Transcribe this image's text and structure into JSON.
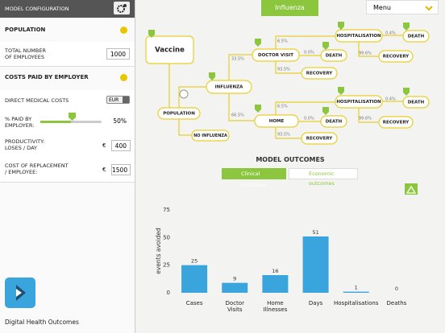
{
  "sidebar": {
    "title": "MODEL CONFIGURATION",
    "population": {
      "heading": "POPULATION",
      "employees_label": "TOTAL NUMBER OF EMPLOYEES",
      "employees": "1000"
    },
    "costs": {
      "heading": "COSTS PAID BY EMPLOYER",
      "direct_label": "DIRECT MEDICAL COSTS",
      "currency": "EUR",
      "paid_label": "% PAID BY EMPLOYER:",
      "paid": "50%",
      "productivity_label": "PRODUCTIVITY: LOSES / DAY",
      "productivity_currency": "€",
      "productivity": "400",
      "replacement_label": "COST OF REPLACEMENT / EMPLOYEE:",
      "replacement_currency": "€",
      "replacement": "1500"
    },
    "brand": "Digital Health Outcomes"
  },
  "top": {
    "tab": "Influenza",
    "menu": "Menu"
  },
  "diagram": {
    "nodes": [
      "Vaccine",
      "POPULATION",
      "INFLUENZA",
      "DOCTOR VISIT",
      "HOME",
      "NO INFLUENZA",
      "HOSPITALISATION",
      "DEATH",
      "RECOVERY",
      "DEATH",
      "RECOVERY",
      "HOSPITALISATION",
      "DEATH",
      "RECOVERY",
      "DEATH",
      "RECOVERY"
    ],
    "edge_labels": [
      "33.5%",
      "66.5%",
      "6.5%",
      "0.0%",
      "93.5%",
      "0.4%",
      "99.6%",
      "6.5%",
      "0.0%",
      "93.5%",
      "0.4%",
      "99.6%"
    ]
  },
  "outcomes": {
    "title": "MODEL OUTCOMES",
    "tabs": [
      "Clinical outcomes",
      "Economic outcomes"
    ]
  },
  "chart_data": {
    "type": "bar",
    "y_label": "events avoided",
    "categories": [
      "Cases",
      "Doctor Visits",
      "Home Illnesses",
      "Days",
      "Hospitalisations",
      "Deaths"
    ],
    "values": [
      25,
      9,
      16,
      51,
      1,
      0
    ],
    "color": "#3aa4dc",
    "ylim": [
      0,
      75
    ],
    "yticks": [
      0,
      25,
      50,
      75
    ]
  }
}
